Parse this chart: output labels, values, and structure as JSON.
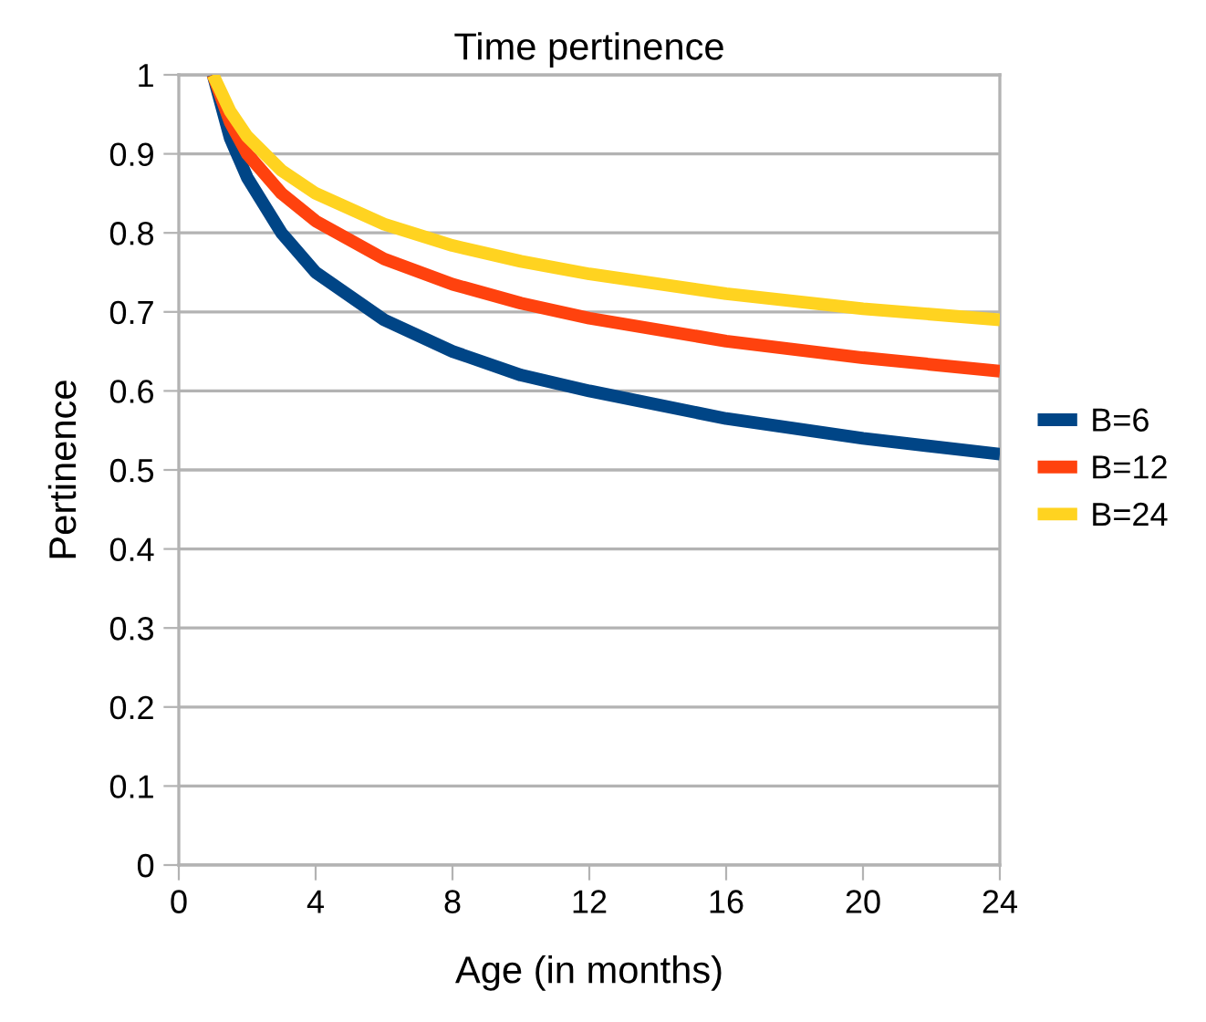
{
  "chart_data": {
    "type": "line",
    "title": "Time pertinence",
    "xlabel": "Age (in months)",
    "ylabel": "Pertinence",
    "x": [
      1,
      1.5,
      2,
      3,
      4,
      6,
      8,
      10,
      12,
      16,
      20,
      24
    ],
    "series": [
      {
        "name": "B=6",
        "color": "#004586",
        "values": [
          1,
          0.92,
          0.87,
          0.8,
          0.75,
          0.69,
          0.65,
          0.62,
          0.6,
          0.565,
          0.54,
          0.52
        ]
      },
      {
        "name": "B=12",
        "color": "#ff420e",
        "values": [
          1,
          0.94,
          0.9,
          0.85,
          0.815,
          0.767,
          0.735,
          0.711,
          0.692,
          0.663,
          0.642,
          0.625
        ]
      },
      {
        "name": "B=24",
        "color": "#ffd320",
        "values": [
          1,
          0.954,
          0.922,
          0.879,
          0.85,
          0.811,
          0.784,
          0.764,
          0.748,
          0.723,
          0.704,
          0.69
        ]
      }
    ],
    "xlim": [
      0,
      24
    ],
    "ylim": [
      0,
      1
    ],
    "xticks": [
      0,
      4,
      8,
      12,
      16,
      20,
      24
    ],
    "yticks": [
      0,
      0.1,
      0.2,
      0.3,
      0.4,
      0.5,
      0.6,
      0.7,
      0.8,
      0.9,
      1
    ],
    "grid": "y",
    "legend": "right",
    "marker": "none",
    "line_style": "solid"
  }
}
